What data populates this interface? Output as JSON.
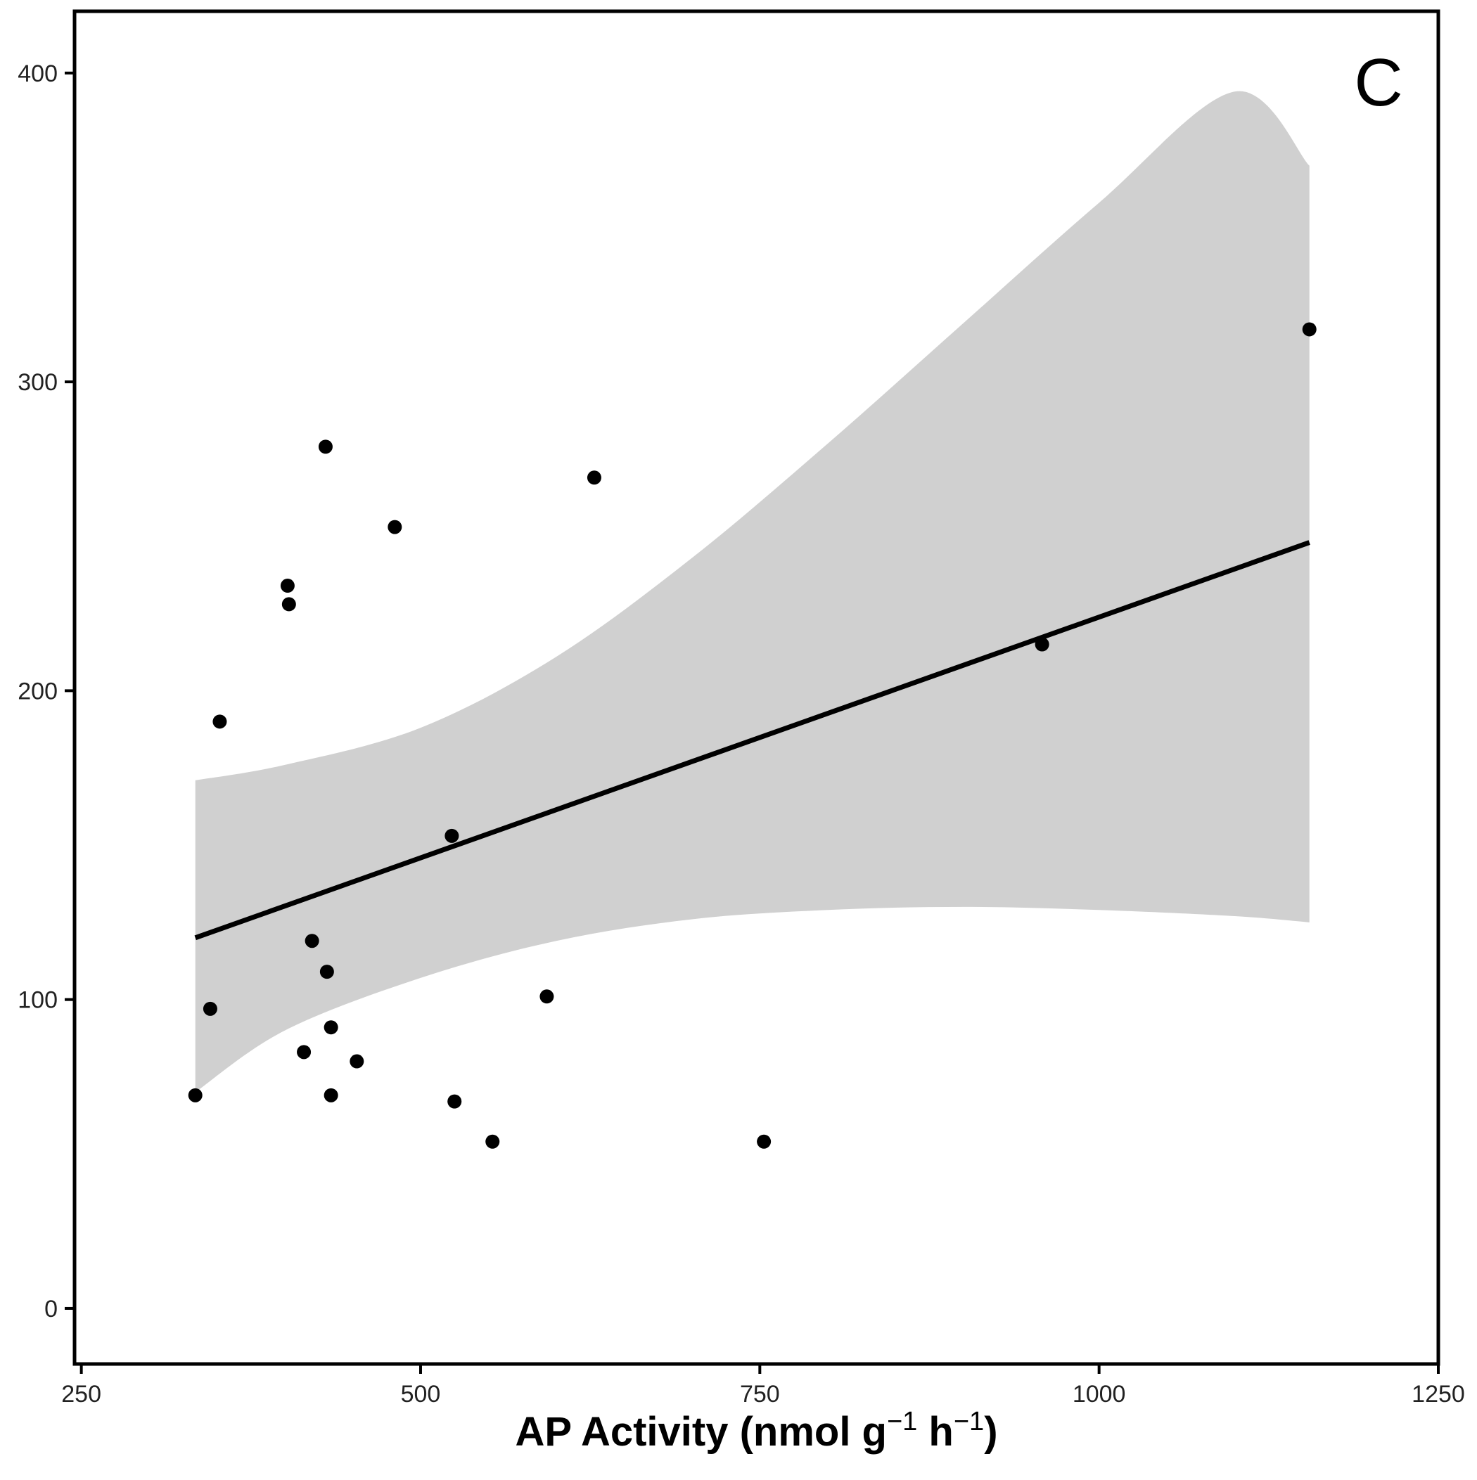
{
  "chart_data": {
    "type": "scatter",
    "panel_label": "C",
    "title": "",
    "xlabel": {
      "main": "AP Activity (nmol g",
      "sup1": "−1",
      "mid": " h",
      "sup2": "−1",
      "end": ")"
    },
    "ylabel": "",
    "xlim": [
      245,
      1250
    ],
    "ylim": [
      -18,
      420
    ],
    "x_ticks": [
      250,
      500,
      750,
      1000,
      1250
    ],
    "y_ticks": [
      0,
      100,
      200,
      300,
      400
    ],
    "x_tick_labels": [
      "250",
      "500",
      "750",
      "1000",
      "1250"
    ],
    "y_tick_labels": [
      "0",
      "100",
      "200",
      "300",
      "400"
    ],
    "grid": false,
    "points": [
      {
        "x": 334,
        "y": 69
      },
      {
        "x": 345,
        "y": 97
      },
      {
        "x": 352,
        "y": 190
      },
      {
        "x": 402,
        "y": 234
      },
      {
        "x": 403,
        "y": 228
      },
      {
        "x": 414,
        "y": 83
      },
      {
        "x": 420,
        "y": 119
      },
      {
        "x": 430,
        "y": 279
      },
      {
        "x": 431,
        "y": 109
      },
      {
        "x": 434,
        "y": 91
      },
      {
        "x": 434,
        "y": 69
      },
      {
        "x": 453,
        "y": 80
      },
      {
        "x": 481,
        "y": 253
      },
      {
        "x": 523,
        "y": 153
      },
      {
        "x": 525,
        "y": 67
      },
      {
        "x": 553,
        "y": 54
      },
      {
        "x": 593,
        "y": 101
      },
      {
        "x": 628,
        "y": 269
      },
      {
        "x": 753,
        "y": 54
      },
      {
        "x": 958,
        "y": 215
      },
      {
        "x": 1155,
        "y": 317
      }
    ],
    "fit_line": {
      "x": [
        334,
        1155
      ],
      "y": [
        120,
        248
      ]
    },
    "confidence_band": {
      "x": [
        334,
        400,
        500,
        600,
        700,
        800,
        900,
        1000,
        1100,
        1155
      ],
      "upper": [
        171,
        176,
        188,
        211,
        243,
        280,
        319,
        358,
        394,
        370
      ],
      "lower": [
        70,
        90,
        107,
        119,
        126,
        129,
        130,
        129,
        127,
        125
      ]
    },
    "colors": {
      "points": "#000000",
      "line": "#000000",
      "band": "#d0d0d0",
      "frame": "#000000"
    }
  }
}
